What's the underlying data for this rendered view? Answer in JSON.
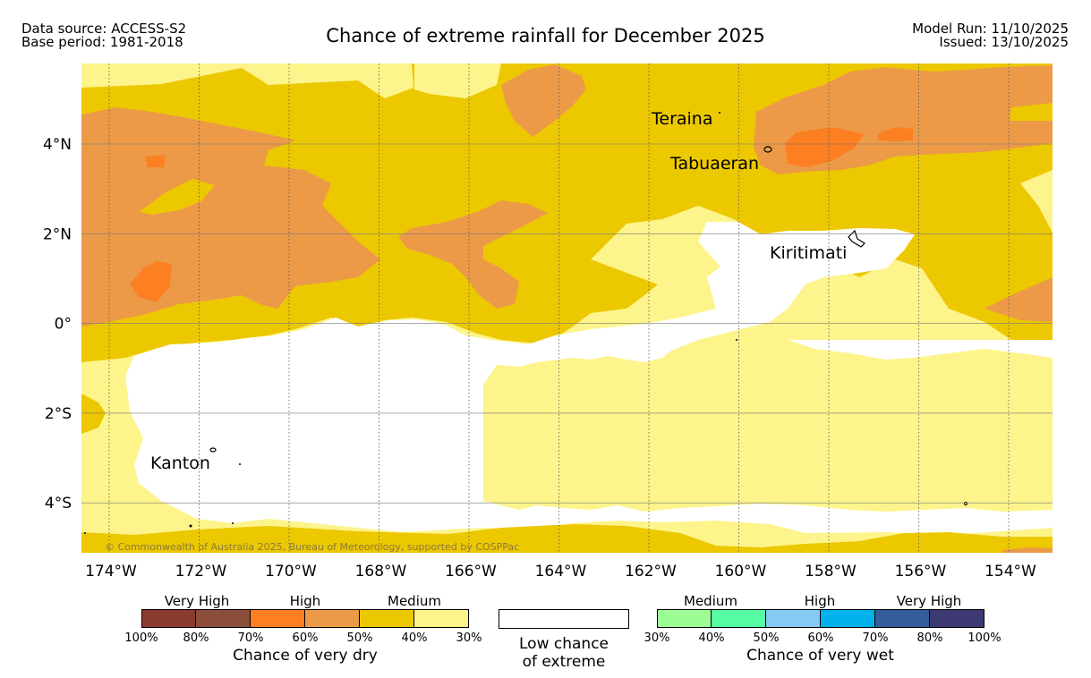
{
  "header": {
    "data_source": "Data source: ACCESS-S2",
    "base_period": "Base period: 1981-2018",
    "title": "Chance of extreme rainfall for December 2025",
    "model_run": "Model Run: 11/10/2025",
    "issued": "Issued: 13/10/2025"
  },
  "map": {
    "lon_labels": [
      "174°W",
      "172°W",
      "170°W",
      "168°W",
      "166°W",
      "164°W",
      "162°W",
      "160°W",
      "158°W",
      "156°W",
      "154°W"
    ],
    "lat_labels": [
      "4°N",
      "2°N",
      "0°",
      "2°S",
      "4°S"
    ],
    "places": [
      "Teraina",
      "Tabuaeran",
      "Kiritimati",
      "Kanton"
    ],
    "copyright": "© Commonwealth of Australia 2025, Bureau of Meteorology, supported by COSPPac"
  },
  "legend": {
    "dry": {
      "headings": [
        "Very High",
        "High",
        "Medium"
      ],
      "ticks": [
        "100%",
        "80%",
        "70%",
        "60%",
        "50%",
        "40%",
        "30%"
      ],
      "caption": "Chance of very dry",
      "colors": [
        "#8b3a2e",
        "#8b4e3a",
        "#fc7f22",
        "#ec9a48",
        "#ecc800",
        "#fdf48b"
      ]
    },
    "low": {
      "line1": "Low chance",
      "line2": "of extreme"
    },
    "wet": {
      "headings": [
        "Medium",
        "High",
        "Very High"
      ],
      "ticks": [
        "30%",
        "40%",
        "50%",
        "60%",
        "70%",
        "80%",
        "100%"
      ],
      "caption": "Chance of very wet",
      "colors": [
        "#9dfd95",
        "#58fca4",
        "#86caf6",
        "#00b2ec",
        "#335d9c",
        "#3d3a73"
      ]
    }
  },
  "colors": {
    "band_low": "#fdf48b",
    "band_med": "#ecc800",
    "band_high": "#ec9a48",
    "band_vhigh": "#fc7f22"
  }
}
